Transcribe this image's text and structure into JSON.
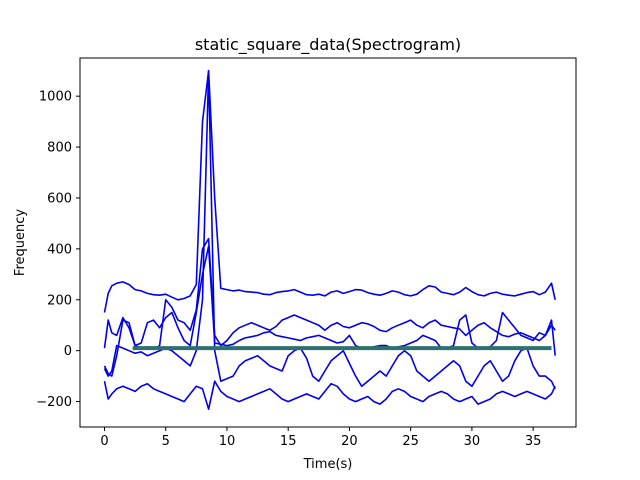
{
  "chart_data": {
    "type": "line",
    "title": "static_square_data(Spectrogram)",
    "xlabel": "Time(s)",
    "ylabel": "Frequency",
    "xlim": [
      -2,
      38.5
    ],
    "ylim": [
      -300,
      1150
    ],
    "xticks": [
      0,
      5,
      10,
      15,
      20,
      25,
      30,
      35
    ],
    "yticks": [
      -200,
      0,
      200,
      400,
      600,
      800,
      1000
    ],
    "grid": false,
    "legend": "none",
    "colors": {
      "series": "#0000ee",
      "flat_series": "#2f6f6f",
      "frame": "#000000"
    },
    "series": [
      {
        "x": [
          0,
          0.3,
          0.6,
          1,
          1.5,
          2,
          2.5,
          3,
          3.5,
          4,
          4.5,
          5,
          5.5,
          6,
          6.5,
          7,
          7.5,
          8,
          8.5,
          9,
          9.5,
          10,
          10.5,
          11,
          11.5,
          12,
          12.5,
          13,
          13.5,
          14,
          14.5,
          15,
          15.5,
          16,
          16.5,
          17,
          17.5,
          18,
          18.5,
          19,
          19.5,
          20,
          20.5,
          21,
          21.5,
          22,
          22.5,
          23,
          23.5,
          24,
          24.5,
          25,
          25.5,
          26,
          26.5,
          27,
          27.5,
          28,
          28.5,
          29,
          29.5,
          30,
          30.5,
          31,
          31.5,
          32,
          32.5,
          33,
          33.5,
          34,
          34.5,
          35,
          35.5,
          36,
          36.5,
          36.8
        ],
        "values": [
          150,
          225,
          255,
          265,
          270,
          260,
          240,
          235,
          225,
          220,
          218,
          222,
          210,
          200,
          205,
          215,
          260,
          900,
          1100,
          600,
          245,
          240,
          235,
          238,
          232,
          230,
          228,
          222,
          220,
          228,
          232,
          235,
          240,
          230,
          220,
          218,
          222,
          215,
          230,
          235,
          225,
          232,
          240,
          238,
          228,
          222,
          218,
          225,
          235,
          230,
          220,
          215,
          222,
          240,
          255,
          250,
          230,
          225,
          220,
          230,
          248,
          232,
          220,
          215,
          225,
          230,
          222,
          218,
          215,
          222,
          228,
          232,
          220,
          230,
          265,
          200
        ]
      },
      {
        "x": [
          0,
          0.3,
          0.6,
          1,
          1.5,
          2,
          2.5,
          3,
          3.5,
          4,
          4.5,
          5,
          5.5,
          6,
          6.5,
          7,
          7.5,
          8,
          8.5,
          9,
          9.5,
          10,
          10.5,
          11,
          11.5,
          12,
          12.5,
          13,
          13.5,
          14,
          14.5,
          15,
          15.5,
          16,
          16.5,
          17,
          17.5,
          18,
          18.5,
          19,
          19.5,
          20,
          20.5,
          21,
          21.5,
          22,
          22.5,
          23,
          23.5,
          24,
          24.5,
          25,
          25.5,
          26,
          26.5,
          27,
          27.5,
          28,
          28.5,
          29,
          29.5,
          30,
          30.5,
          31,
          31.5,
          32,
          32.5,
          33,
          33.5,
          34,
          34.5,
          35,
          35.5,
          36,
          36.5,
          36.8
        ],
        "values": [
          -60,
          -90,
          -100,
          -20,
          120,
          110,
          20,
          10,
          15,
          5,
          20,
          200,
          170,
          120,
          110,
          80,
          160,
          400,
          440,
          60,
          20,
          40,
          70,
          90,
          100,
          110,
          100,
          90,
          80,
          95,
          120,
          130,
          140,
          130,
          120,
          110,
          100,
          80,
          100,
          110,
          95,
          90,
          100,
          110,
          105,
          95,
          80,
          75,
          90,
          100,
          110,
          120,
          100,
          90,
          110,
          120,
          100,
          95,
          90,
          85,
          60,
          80,
          100,
          110,
          90,
          75,
          60,
          55,
          65,
          70,
          60,
          50,
          40,
          60,
          100,
          80
        ]
      },
      {
        "x": [
          0,
          0.3,
          0.6,
          1,
          1.5,
          2,
          2.5,
          3,
          3.5,
          4,
          4.5,
          5,
          5.5,
          6,
          6.5,
          7,
          7.5,
          8,
          8.5,
          9,
          9.5,
          10,
          10.5,
          11,
          11.5,
          12,
          12.5,
          13,
          13.5,
          14,
          14.5,
          15,
          15.5,
          16,
          16.5,
          17,
          17.5,
          18,
          18.5,
          19,
          19.5,
          20,
          20.5,
          21,
          21.5,
          22,
          22.5,
          23,
          23.5,
          24,
          24.5,
          25,
          25.5,
          26,
          26.5,
          27,
          27.5,
          28,
          28.5,
          29,
          29.5,
          30,
          30.5,
          31,
          31.5,
          32,
          32.5,
          33,
          33.5,
          34,
          34.5,
          35,
          35.5,
          36,
          36.5,
          36.8
        ],
        "values": [
          10,
          120,
          70,
          60,
          130,
          90,
          20,
          30,
          110,
          120,
          90,
          130,
          150,
          90,
          40,
          20,
          150,
          300,
          410,
          30,
          25,
          20,
          25,
          40,
          50,
          55,
          60,
          70,
          75,
          60,
          55,
          50,
          45,
          40,
          50,
          55,
          60,
          50,
          40,
          30,
          35,
          60,
          20,
          10,
          10,
          15,
          20,
          20,
          10,
          15,
          20,
          30,
          40,
          60,
          50,
          40,
          10,
          10,
          20,
          120,
          140,
          30,
          10,
          10,
          15,
          40,
          150,
          120,
          90,
          60,
          50,
          40,
          70,
          60,
          120,
          -20
        ]
      },
      {
        "x": [
          0,
          0.3,
          0.6,
          1,
          1.5,
          2,
          2.5,
          3,
          3.5,
          4,
          4.5,
          5,
          5.5,
          6,
          6.5,
          7,
          7.5,
          8,
          8.5,
          9,
          9.5,
          10,
          10.5,
          11,
          11.5,
          12,
          12.5,
          13,
          13.5,
          14,
          14.5,
          15,
          15.5,
          16,
          16.5,
          17,
          17.5,
          18,
          18.5,
          19,
          19.5,
          20,
          20.5,
          21,
          21.5,
          22,
          22.5,
          23,
          23.5,
          24,
          24.5,
          25,
          25.5,
          26,
          26.5,
          27,
          27.5,
          28,
          28.5,
          29,
          29.5,
          30,
          30.5,
          31,
          31.5,
          32,
          32.5,
          33,
          33.5,
          34,
          34.5,
          35,
          35.5,
          36,
          36.5,
          36.8
        ],
        "values": [
          -70,
          -100,
          -80,
          20,
          10,
          0,
          -10,
          -5,
          -20,
          -10,
          0,
          10,
          0,
          -20,
          -40,
          -60,
          0,
          200,
          1100,
          0,
          -120,
          -110,
          -100,
          -60,
          -40,
          -30,
          -20,
          -40,
          -60,
          -70,
          -80,
          -20,
          0,
          10,
          -30,
          -100,
          -120,
          -80,
          -40,
          -20,
          0,
          -50,
          -100,
          -140,
          -120,
          -100,
          -80,
          -100,
          -60,
          -20,
          0,
          -20,
          -80,
          -100,
          -120,
          -100,
          -80,
          -60,
          -40,
          -60,
          -120,
          -140,
          -100,
          -60,
          -40,
          -80,
          -120,
          -100,
          -40,
          0,
          10,
          -60,
          -100,
          -100,
          -120,
          -150
        ]
      },
      {
        "x": [
          0,
          0.3,
          0.6,
          1,
          1.5,
          2,
          2.5,
          3,
          3.5,
          4,
          4.5,
          5,
          5.5,
          6,
          6.5,
          7,
          7.5,
          8,
          8.5,
          9,
          9.5,
          10,
          10.5,
          11,
          11.5,
          12,
          12.5,
          13,
          13.5,
          14,
          14.5,
          15,
          15.5,
          16,
          16.5,
          17,
          17.5,
          18,
          18.5,
          19,
          19.5,
          20,
          20.5,
          21,
          21.5,
          22,
          22.5,
          23,
          23.5,
          24,
          24.5,
          25,
          25.5,
          26,
          26.5,
          27,
          27.5,
          28,
          28.5,
          29,
          29.5,
          30,
          30.5,
          31,
          31.5,
          32,
          32.5,
          33,
          33.5,
          34,
          34.5,
          35,
          35.5,
          36,
          36.5,
          36.8
        ],
        "values": [
          -120,
          -190,
          -170,
          -150,
          -140,
          -150,
          -160,
          -140,
          -130,
          -150,
          -160,
          -170,
          -180,
          -190,
          -200,
          -170,
          -140,
          -150,
          -230,
          -120,
          -160,
          -180,
          -190,
          -200,
          -190,
          -180,
          -170,
          -160,
          -150,
          -170,
          -190,
          -200,
          -190,
          -180,
          -170,
          -180,
          -190,
          -160,
          -130,
          -140,
          -170,
          -190,
          -200,
          -190,
          -180,
          -200,
          -210,
          -190,
          -160,
          -150,
          -160,
          -180,
          -190,
          -200,
          -180,
          -170,
          -160,
          -170,
          -190,
          -200,
          -190,
          -180,
          -210,
          -200,
          -190,
          -170,
          -160,
          -170,
          -180,
          -170,
          -160,
          -170,
          -180,
          -190,
          -170,
          -140
        ]
      },
      {
        "x": [
          2.3,
          36.5
        ],
        "values": [
          10,
          10
        ],
        "style": "flat"
      }
    ]
  }
}
